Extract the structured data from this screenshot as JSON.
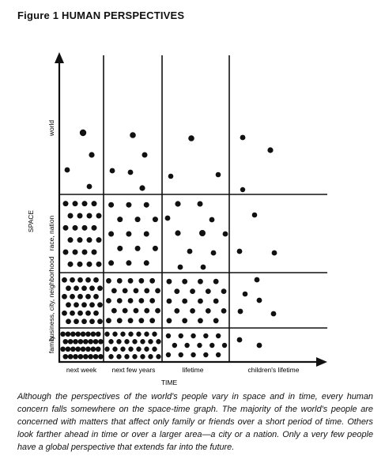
{
  "figure": {
    "title": "Figure 1 HUMAN PERSPECTIVES",
    "axis_y_label": "SPACE",
    "axis_x_label": "TIME",
    "space_levels": [
      "family",
      "business, city, neighborhood",
      "race, nation",
      "world"
    ],
    "time_levels": [
      "next week",
      "next few years",
      "lifetime",
      "children's lifetime"
    ]
  },
  "caption": "Although the perspectives of the world's people vary in space and in time, every human concern falls somewhere on the space-time graph. The majority of the world's people are concerned with matters that affect only family or friends over a short period of time. Others look farther ahead in time or over a larger area—a city or a nation. Only a very few people have a global perspective that extends far into the future."
}
